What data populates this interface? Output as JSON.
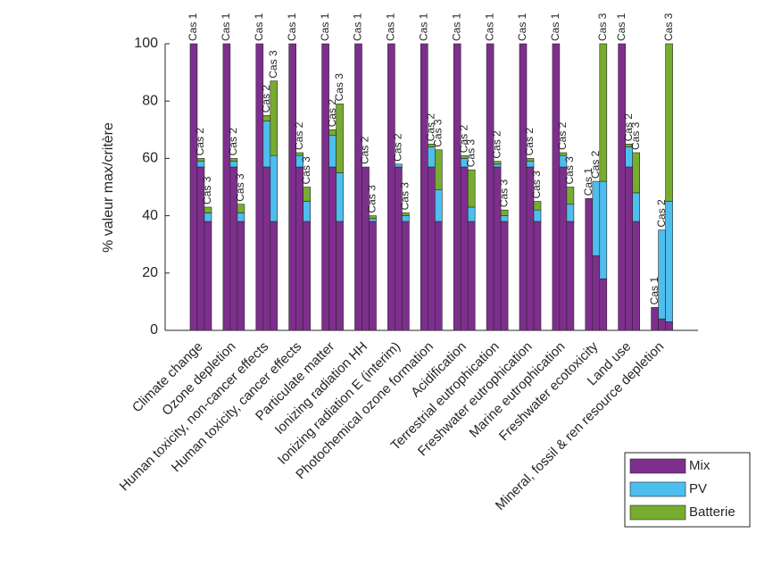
{
  "chart_data": {
    "type": "grouped-stacked-bar",
    "y_label": "% valeur max/critère",
    "groups": [
      "Cas 1",
      "Cas 2",
      "Cas 3"
    ],
    "categories": [
      "Climate change",
      "Ozone depletion",
      "Human toxicity, non-cancer effects",
      "Human toxicity, cancer effects",
      "Particulate matter",
      "Ionizing radiation HH",
      "Ionizing radiation E (interim)",
      "Photochemical ozone formation",
      "Acidification",
      "Terrestrial eutrophication",
      "Freshwater eutrophication",
      "Marine eutrophication",
      "Freshwater ecotoxicity",
      "Land use",
      "Mineral, fossil & ren resource depletion"
    ],
    "series": [
      {
        "name": "Mix",
        "color": "#7e2f8e",
        "values": [
          [
            100,
            57,
            38
          ],
          [
            100,
            57,
            38
          ],
          [
            100,
            57,
            38
          ],
          [
            100,
            57,
            38
          ],
          [
            100,
            57,
            38
          ],
          [
            100,
            57,
            38
          ],
          [
            100,
            57,
            38
          ],
          [
            100,
            57,
            38
          ],
          [
            100,
            57,
            38
          ],
          [
            100,
            57,
            38
          ],
          [
            100,
            57,
            38
          ],
          [
            100,
            57,
            38
          ],
          [
            46,
            26,
            18
          ],
          [
            100,
            57,
            38
          ],
          [
            8,
            4,
            3
          ]
        ]
      },
      {
        "name": "PV",
        "color": "#4dbeee",
        "values": [
          [
            0,
            2,
            3
          ],
          [
            0,
            2,
            3
          ],
          [
            0,
            16,
            23
          ],
          [
            0,
            4,
            7
          ],
          [
            0,
            11,
            17
          ],
          [
            0,
            0,
            1
          ],
          [
            0,
            1,
            2
          ],
          [
            0,
            7,
            11
          ],
          [
            0,
            3,
            5
          ],
          [
            0,
            1,
            2
          ],
          [
            0,
            2,
            4
          ],
          [
            0,
            4,
            6
          ],
          [
            0,
            26,
            34
          ],
          [
            0,
            7,
            10
          ],
          [
            0,
            31,
            42
          ]
        ]
      },
      {
        "name": "Batterie",
        "color": "#77ac30",
        "values": [
          [
            0,
            1,
            2
          ],
          [
            0,
            1,
            3
          ],
          [
            0,
            2,
            26
          ],
          [
            0,
            1,
            5
          ],
          [
            0,
            2,
            24
          ],
          [
            0,
            0,
            1
          ],
          [
            0,
            0,
            1
          ],
          [
            0,
            1,
            14
          ],
          [
            0,
            1,
            13
          ],
          [
            0,
            1,
            2
          ],
          [
            0,
            1,
            3
          ],
          [
            0,
            1,
            6
          ],
          [
            0,
            0,
            48
          ],
          [
            0,
            1,
            14
          ],
          [
            0,
            0,
            55
          ]
        ]
      }
    ],
    "ylim": [
      0,
      100
    ],
    "yticks": [
      0,
      20,
      40,
      60,
      80,
      100
    ],
    "grid": false,
    "legend": "southeast-outside"
  }
}
